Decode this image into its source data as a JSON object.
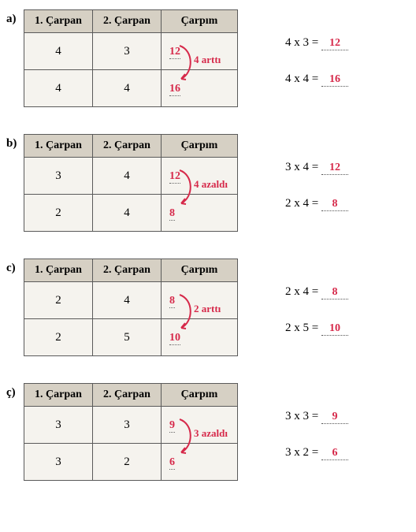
{
  "headers": {
    "c1": "1. Çarpan",
    "c2": "2. Çarpan",
    "c3": "Çarpım"
  },
  "annotation_color": "#d6294a",
  "header_bg": "#d6d0c4",
  "cell_bg": "#f5f3ee",
  "border_color": "#5a5a5a",
  "blocks": [
    {
      "label": "a)",
      "rows": [
        {
          "f1": "4",
          "f2": "3",
          "prod": "12"
        },
        {
          "f1": "4",
          "f2": "4",
          "prod": "16"
        }
      ],
      "note": "4 arttı",
      "eqs": [
        {
          "lhs": "4 x 3 =",
          "ans": "12"
        },
        {
          "lhs": "4 x 4 =",
          "ans": "16"
        }
      ]
    },
    {
      "label": "b)",
      "rows": [
        {
          "f1": "3",
          "f2": "4",
          "prod": "12"
        },
        {
          "f1": "2",
          "f2": "4",
          "prod": "8"
        }
      ],
      "note": "4 azaldı",
      "eqs": [
        {
          "lhs": "3 x 4 =",
          "ans": "12"
        },
        {
          "lhs": "2 x 4 =",
          "ans": "8"
        }
      ]
    },
    {
      "label": "c)",
      "rows": [
        {
          "f1": "2",
          "f2": "4",
          "prod": "8"
        },
        {
          "f1": "2",
          "f2": "5",
          "prod": "10"
        }
      ],
      "note": "2 arttı",
      "eqs": [
        {
          "lhs": "2 x 4 =",
          "ans": "8"
        },
        {
          "lhs": "2 x 5 =",
          "ans": "10"
        }
      ]
    },
    {
      "label": "ç)",
      "rows": [
        {
          "f1": "3",
          "f2": "3",
          "prod": "9"
        },
        {
          "f1": "3",
          "f2": "2",
          "prod": "6"
        }
      ],
      "note": "3 azaldı",
      "eqs": [
        {
          "lhs": "3 x 3 =",
          "ans": "9"
        },
        {
          "lhs": "3 x 2 =",
          "ans": "6"
        }
      ]
    }
  ]
}
